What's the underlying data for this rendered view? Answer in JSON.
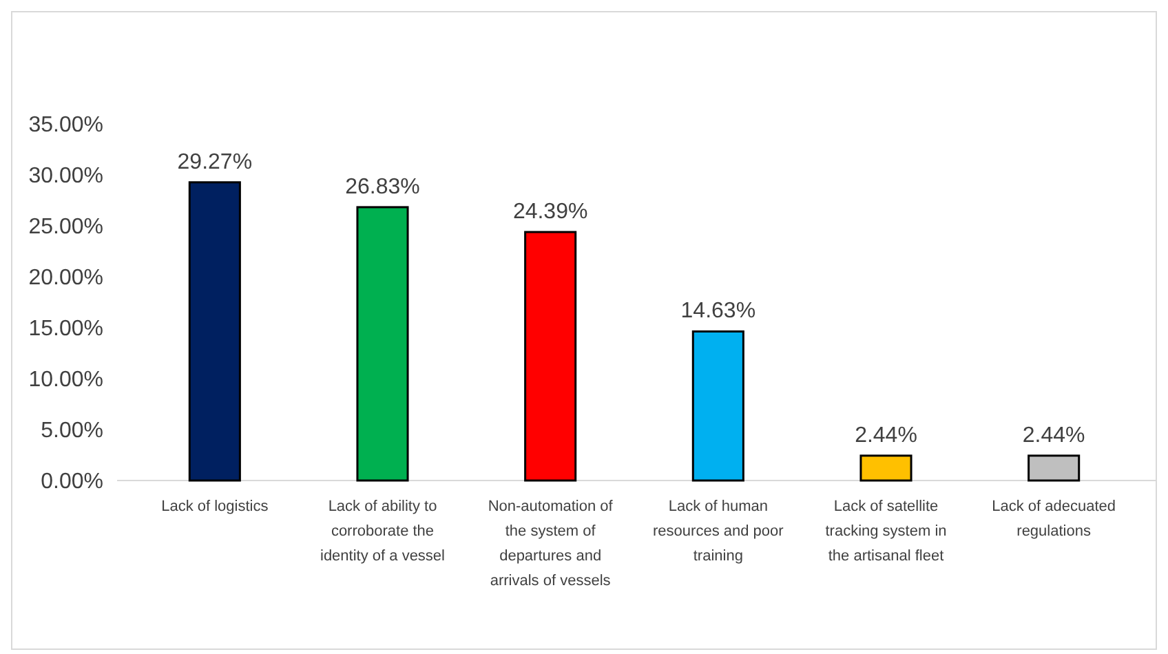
{
  "chart_data": {
    "type": "bar",
    "categories": [
      "Lack of logistics",
      "Lack of ability to corroborate the identity of a vessel",
      "Non-automation of the system of departures and arrivals of vessels",
      "Lack of human resources and poor training",
      "Lack of satellite tracking system in the artisanal fleet",
      "Lack of adecuated regulations"
    ],
    "values": [
      29.27,
      26.83,
      24.39,
      14.63,
      2.44,
      2.44
    ],
    "colors": [
      "#002060",
      "#00b050",
      "#ff0000",
      "#00b0f0",
      "#ffc000",
      "#bfbfbf"
    ],
    "value_labels": [
      "29.27%",
      "26.83%",
      "24.39%",
      "14.63%",
      "2.44%",
      "2.44%"
    ],
    "ylim": [
      0,
      35
    ],
    "yticks": [
      {
        "value": 0,
        "label": "0.00%"
      },
      {
        "value": 5,
        "label": "5.00%"
      },
      {
        "value": 10,
        "label": "10.00%"
      },
      {
        "value": 15,
        "label": "15.00%"
      },
      {
        "value": 20,
        "label": "20.00%"
      },
      {
        "value": 25,
        "label": "25.00%"
      },
      {
        "value": 30,
        "label": "30.00%"
      },
      {
        "value": 35,
        "label": "35.00%"
      }
    ],
    "grid": false
  }
}
